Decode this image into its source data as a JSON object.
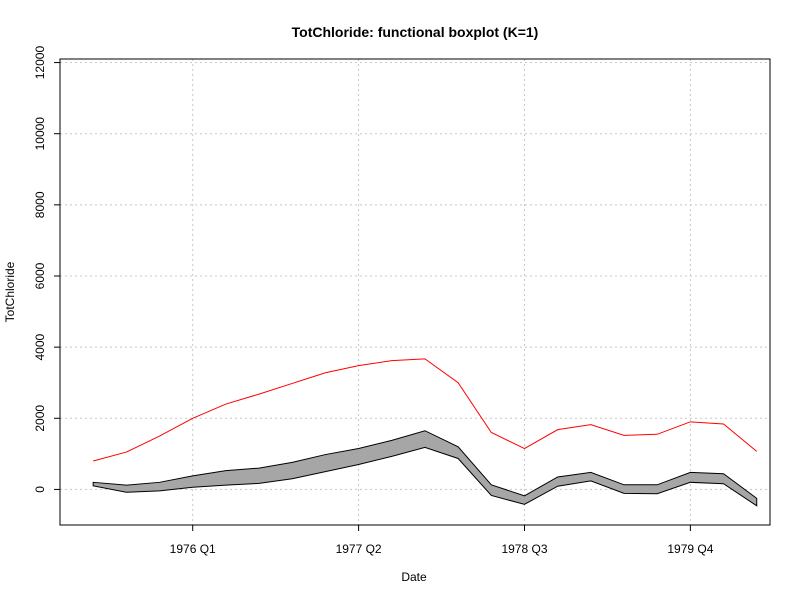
{
  "chart_data": {
    "type": "area",
    "title": "TotChloride: functional boxplot (K=1)",
    "xlabel": "Date",
    "ylabel": "TotChloride",
    "x": [
      1975.25,
      1975.5,
      1975.75,
      1976.0,
      1976.25,
      1976.5,
      1976.75,
      1977.0,
      1977.25,
      1977.5,
      1977.75,
      1978.0,
      1978.25,
      1978.5,
      1978.75,
      1979.0,
      1979.25,
      1979.5,
      1979.75,
      1980.0,
      1980.25
    ],
    "x_tick_values": [
      1976.0,
      1977.25,
      1978.5,
      1979.75
    ],
    "x_tick_labels": [
      "1976 Q1",
      "1977 Q2",
      "1978 Q3",
      "1979 Q4"
    ],
    "xlim": [
      1975.0,
      1980.35
    ],
    "y_tick_values": [
      0,
      2000,
      4000,
      6000,
      8000,
      10000,
      12000
    ],
    "y_tick_labels": [
      "0",
      "2000",
      "4000",
      "6000",
      "8000",
      "10000",
      "12000"
    ],
    "ylim": [
      -1000,
      12100
    ],
    "grid": true,
    "series": [
      {
        "role": "band_upper",
        "values": [
          200,
          120,
          200,
          380,
          530,
          600,
          760,
          980,
          1150,
          1380,
          1650,
          1200,
          130,
          -180,
          350,
          480,
          130,
          130,
          480,
          440,
          -250
        ]
      },
      {
        "role": "band_lower",
        "values": [
          100,
          -80,
          -40,
          60,
          120,
          170,
          300,
          500,
          700,
          930,
          1180,
          870,
          -170,
          -420,
          90,
          240,
          -110,
          -120,
          200,
          160,
          -460
        ]
      },
      {
        "role": "outlier",
        "values": [
          800,
          1050,
          1500,
          2000,
          2400,
          2680,
          2980,
          3280,
          3480,
          3620,
          3670,
          3000,
          1600,
          1150,
          1680,
          1820,
          1520,
          1550,
          1900,
          1840,
          1070
        ]
      }
    ],
    "colors": {
      "band_fill": "#a6a6a6",
      "band_stroke": "#000000",
      "outlier": "#ff0000",
      "grid": "#c8c8c8",
      "axis": "#000000"
    }
  }
}
